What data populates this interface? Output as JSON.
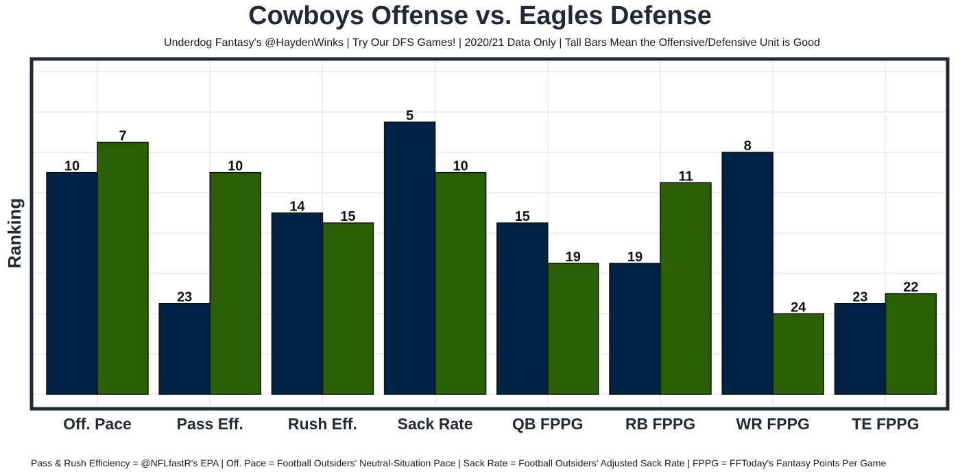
{
  "chart_data": {
    "type": "bar",
    "title": "Cowboys Offense vs. Eagles Defense",
    "subtitle": "Underdog Fantasy's @HaydenWinks | Try Our DFS Games! | 2020/21 Data Only | Tall Bars Mean the Offensive/Defensive Unit is Good",
    "ylabel": "Ranking",
    "xlabel": "",
    "caption": "Pass & Rush Efficiency = @NFLfastR's EPA | Off. Pace = Football Outsiders' Neutral-Situation Pace | Sack Rate = Football Outsiders' Adjusted Sack Rate | FPPG = FFToday's Fantasy Points Per Game",
    "categories": [
      "Off. Pace",
      "Pass Eff.",
      "Rush Eff.",
      "Sack Rate",
      "QB FPPG",
      "RB FPPG",
      "WR FPPG",
      "TE FPPG"
    ],
    "series": [
      {
        "values": [
          10,
          23,
          14,
          5,
          15,
          19,
          8,
          23
        ],
        "color": "#002244"
      },
      {
        "values": [
          7,
          10,
          15,
          10,
          19,
          11,
          24,
          22
        ],
        "color": "#2a5f06"
      }
    ],
    "y_axis_inverted": true,
    "ylim": [
      32,
      0
    ],
    "grid": true,
    "legend": "none"
  }
}
